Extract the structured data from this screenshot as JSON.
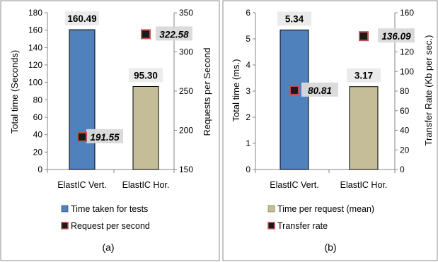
{
  "chart_data": [
    {
      "type": "bar",
      "categories": [
        "ElastIC Vert.",
        "ElastIC Hor."
      ],
      "series": [
        {
          "name": "Time taken for tests",
          "kind": "bar",
          "axis": "left",
          "values": [
            160.49,
            95.3
          ],
          "value_labels": [
            "160.49",
            "95.30"
          ],
          "colors": [
            "#4f81bd",
            "#c4bd97"
          ]
        },
        {
          "name": "Request per second",
          "kind": "marker",
          "axis": "right",
          "values": [
            191.55,
            322.58
          ],
          "value_labels": [
            "191.55",
            "322.58"
          ],
          "marker_color": "#1a1a1a",
          "marker_edge": "#c0504d"
        }
      ],
      "ylabel": "Total time (Seconds)",
      "ylabel_right": "Requests per Second",
      "ylim": [
        0,
        180
      ],
      "yticks": [
        "0",
        "20",
        "40",
        "60",
        "80",
        "100",
        "120",
        "140",
        "160",
        "180"
      ],
      "ylim_right": [
        150,
        350
      ],
      "yticks_right": [
        "150",
        "200",
        "250",
        "300",
        "350"
      ],
      "legend": [
        "Time taken for tests",
        "Request per second"
      ],
      "legend_position": "bottom",
      "caption": "(a)"
    },
    {
      "type": "bar",
      "categories": [
        "ElastIC Vert.",
        "ElastIC Hor."
      ],
      "series": [
        {
          "name": "Time per request (mean)",
          "kind": "bar",
          "axis": "left",
          "values": [
            5.34,
            3.17
          ],
          "value_labels": [
            "5.34",
            "3.17"
          ],
          "colors": [
            "#4f81bd",
            "#c4bd97"
          ]
        },
        {
          "name": "Transfer rate",
          "kind": "marker",
          "axis": "right",
          "values": [
            80.81,
            136.09
          ],
          "value_labels": [
            "80.81",
            "136.09"
          ],
          "marker_color": "#1a1a1a",
          "marker_edge": "#c0504d"
        }
      ],
      "ylabel": "Total time (ms.)",
      "ylabel_right": "Transfer Rate (Kb per sec.)",
      "ylim": [
        0,
        6
      ],
      "yticks": [
        "0",
        "1",
        "2",
        "3",
        "4",
        "5",
        "6"
      ],
      "ylim_right": [
        0,
        160
      ],
      "yticks_right": [
        "0",
        "20",
        "40",
        "60",
        "80",
        "100",
        "120",
        "140",
        "160"
      ],
      "legend": [
        "Time per request (mean)",
        "Transfer rate"
      ],
      "legend_position": "bottom",
      "caption": "(b)"
    }
  ]
}
